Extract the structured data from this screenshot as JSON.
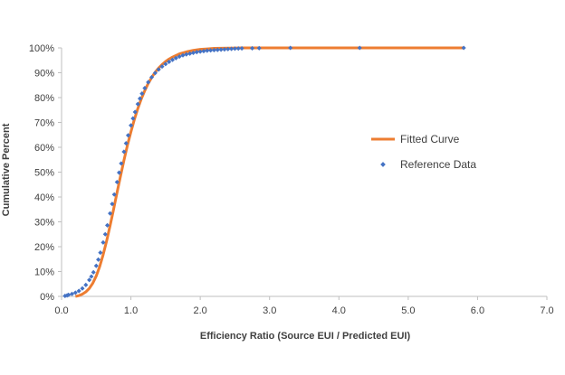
{
  "chart_data": {
    "type": "scatter",
    "xlabel": "Efficiency Ratio (Source EUI / Predicted EUI)",
    "ylabel": "Cumulative Percent",
    "xlim": [
      0,
      7
    ],
    "ylim": [
      0,
      100
    ],
    "x_ticks": [
      "0.0",
      "1.0",
      "2.0",
      "3.0",
      "4.0",
      "5.0",
      "6.0",
      "7.0"
    ],
    "y_ticks": [
      "0%",
      "10%",
      "20%",
      "30%",
      "40%",
      "50%",
      "60%",
      "70%",
      "80%",
      "90%",
      "100%"
    ],
    "grid": false,
    "legend_position": "right",
    "series": [
      {
        "name": "Fitted Curve",
        "kind": "line",
        "color": "#ED7D31",
        "x": [
          0.2,
          0.25,
          0.3,
          0.35,
          0.4,
          0.45,
          0.5,
          0.55,
          0.6,
          0.65,
          0.7,
          0.75,
          0.8,
          0.85,
          0.9,
          0.95,
          1.0,
          1.05,
          1.1,
          1.15,
          1.2,
          1.25,
          1.3,
          1.35,
          1.4,
          1.45,
          1.5,
          1.55,
          1.6,
          1.7,
          1.8,
          1.9,
          2.0,
          2.1,
          2.2,
          2.4,
          2.6,
          3.0,
          4.0,
          5.0,
          5.8
        ],
        "y": [
          0,
          0.3,
          0.9,
          1.8,
          3.2,
          5.3,
          8.2,
          12.0,
          16.8,
          22.3,
          28.5,
          35.0,
          41.8,
          48.4,
          54.8,
          60.8,
          66.2,
          71.2,
          75.6,
          79.5,
          82.8,
          85.7,
          88.1,
          90.2,
          91.9,
          93.3,
          94.5,
          95.5,
          96.3,
          97.6,
          98.4,
          99.0,
          99.4,
          99.6,
          99.8,
          99.9,
          100.0,
          100.0,
          100.0,
          100.0,
          100.0
        ]
      },
      {
        "name": "Reference Data",
        "kind": "points",
        "color": "#4472C4",
        "x": [
          0.05,
          0.08,
          0.1,
          0.15,
          0.2,
          0.25,
          0.3,
          0.35,
          0.4,
          0.43,
          0.46,
          0.5,
          0.53,
          0.56,
          0.6,
          0.63,
          0.66,
          0.7,
          0.73,
          0.76,
          0.8,
          0.83,
          0.86,
          0.9,
          0.93,
          0.96,
          1.0,
          1.03,
          1.06,
          1.1,
          1.13,
          1.16,
          1.2,
          1.25,
          1.3,
          1.35,
          1.4,
          1.45,
          1.5,
          1.55,
          1.6,
          1.65,
          1.7,
          1.75,
          1.8,
          1.85,
          1.9,
          1.95,
          2.0,
          2.05,
          2.1,
          2.15,
          2.2,
          2.25,
          2.3,
          2.35,
          2.4,
          2.45,
          2.5,
          2.55,
          2.6,
          2.75,
          2.85,
          3.3,
          4.3,
          5.8
        ],
        "y": [
          0.2,
          0.4,
          0.6,
          1.0,
          1.5,
          2.2,
          3.2,
          4.6,
          6.6,
          8.0,
          9.7,
          12.3,
          14.8,
          17.6,
          21.7,
          25.0,
          28.6,
          33.4,
          37.2,
          41.0,
          46.0,
          49.8,
          53.5,
          58.2,
          61.6,
          64.8,
          68.8,
          71.6,
          74.2,
          77.4,
          79.6,
          81.6,
          83.8,
          86.2,
          88.2,
          89.9,
          91.3,
          92.5,
          93.5,
          94.4,
          95.2,
          95.9,
          96.5,
          97.0,
          97.4,
          97.7,
          98.0,
          98.3,
          98.5,
          98.7,
          98.9,
          99.0,
          99.1,
          99.2,
          99.3,
          99.4,
          99.5,
          99.6,
          99.7,
          99.75,
          99.8,
          99.85,
          99.9,
          100,
          100,
          100
        ]
      }
    ]
  },
  "colors": {
    "axis": "#bfbfbf",
    "text": "#404040"
  }
}
